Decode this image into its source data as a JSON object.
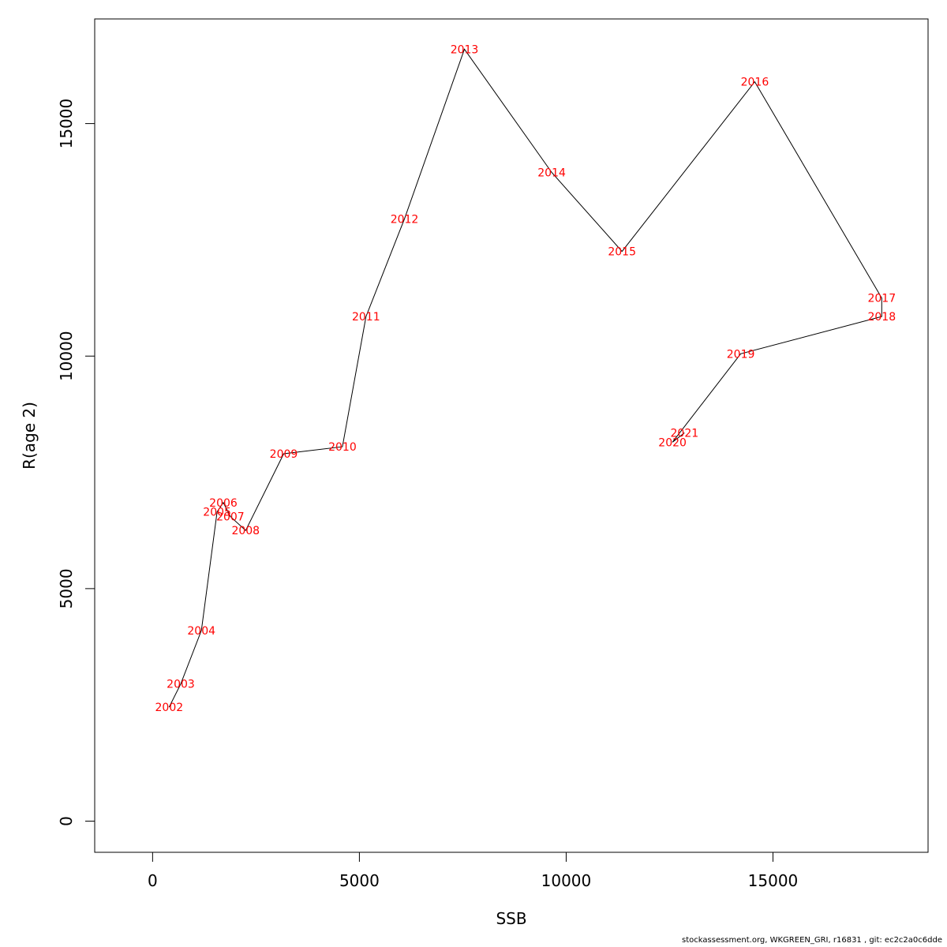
{
  "chart_data": {
    "type": "line",
    "xlabel": "SSB",
    "ylabel": "R(age 2)",
    "xlim": [
      -1400,
      18750
    ],
    "ylim": [
      -670,
      17250
    ],
    "xticks": [
      0,
      5000,
      10000,
      15000
    ],
    "yticks": [
      0,
      5000,
      10000,
      15000
    ],
    "xtick_labels": [
      "0",
      "5000",
      "10000",
      "15000"
    ],
    "ytick_labels": [
      "0",
      "5000",
      "10000",
      "15000"
    ],
    "grid": false,
    "line_color": "#000000",
    "label_color": "#ff0000",
    "points": [
      {
        "label": "2002",
        "x": 400,
        "y": 2450
      },
      {
        "label": "2003",
        "x": 680,
        "y": 2950
      },
      {
        "label": "2004",
        "x": 1180,
        "y": 4100
      },
      {
        "label": "2005",
        "x": 1560,
        "y": 6650
      },
      {
        "label": "2006",
        "x": 1710,
        "y": 6850
      },
      {
        "label": "2007",
        "x": 1880,
        "y": 6550
      },
      {
        "label": "2008",
        "x": 2250,
        "y": 6250
      },
      {
        "label": "2009",
        "x": 3170,
        "y": 7900
      },
      {
        "label": "2010",
        "x": 4590,
        "y": 8050
      },
      {
        "label": "2011",
        "x": 5160,
        "y": 10850
      },
      {
        "label": "2012",
        "x": 6090,
        "y": 12950
      },
      {
        "label": "2013",
        "x": 7540,
        "y": 16600
      },
      {
        "label": "2014",
        "x": 9650,
        "y": 13950
      },
      {
        "label": "2015",
        "x": 11350,
        "y": 12250
      },
      {
        "label": "2016",
        "x": 14560,
        "y": 15900
      },
      {
        "label": "2017",
        "x": 17630,
        "y": 11250
      },
      {
        "label": "2018",
        "x": 17630,
        "y": 10850
      },
      {
        "label": "2019",
        "x": 14220,
        "y": 10050
      },
      {
        "label": "2020",
        "x": 12570,
        "y": 8150
      },
      {
        "label": "2021",
        "x": 12860,
        "y": 8350
      }
    ]
  },
  "footer": "stockassessment.org, WKGREEN_GRI, r16831 , git: ec2c2a0c6dde"
}
